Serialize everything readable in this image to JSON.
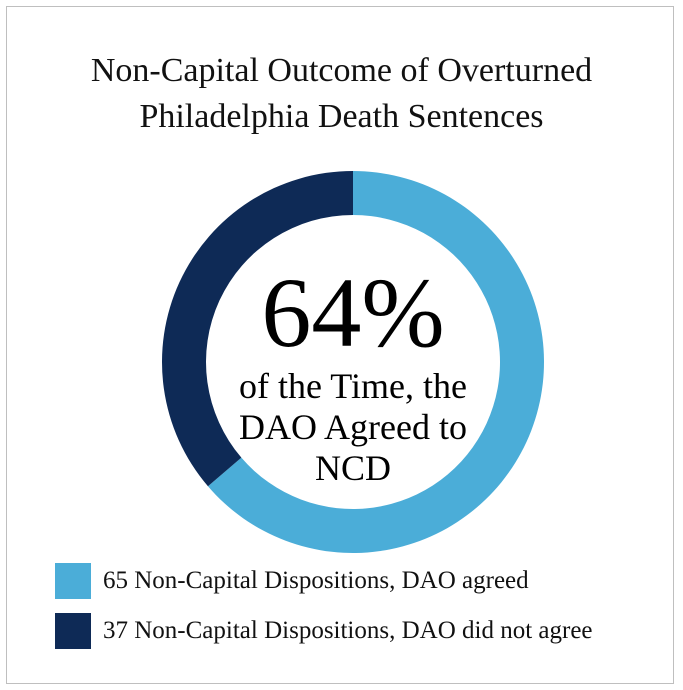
{
  "chart_data": {
    "type": "pie",
    "variant": "donut",
    "title_lines": [
      "Non-Capital Outcome of Overturned",
      "Philadelphia Death Sentences"
    ],
    "center_value": "64%",
    "center_caption_lines": [
      "of the Time, the",
      "DAO Agreed to",
      "NCD"
    ],
    "slices": [
      {
        "label": "65 Non-Capital Dispositions, DAO agreed",
        "value": 65,
        "color": "#4badd8"
      },
      {
        "label": "37 Non-Capital Dispositions, DAO did not agree",
        "value": 37,
        "color": "#0e2a56"
      }
    ],
    "legend_position": "bottom-left"
  }
}
